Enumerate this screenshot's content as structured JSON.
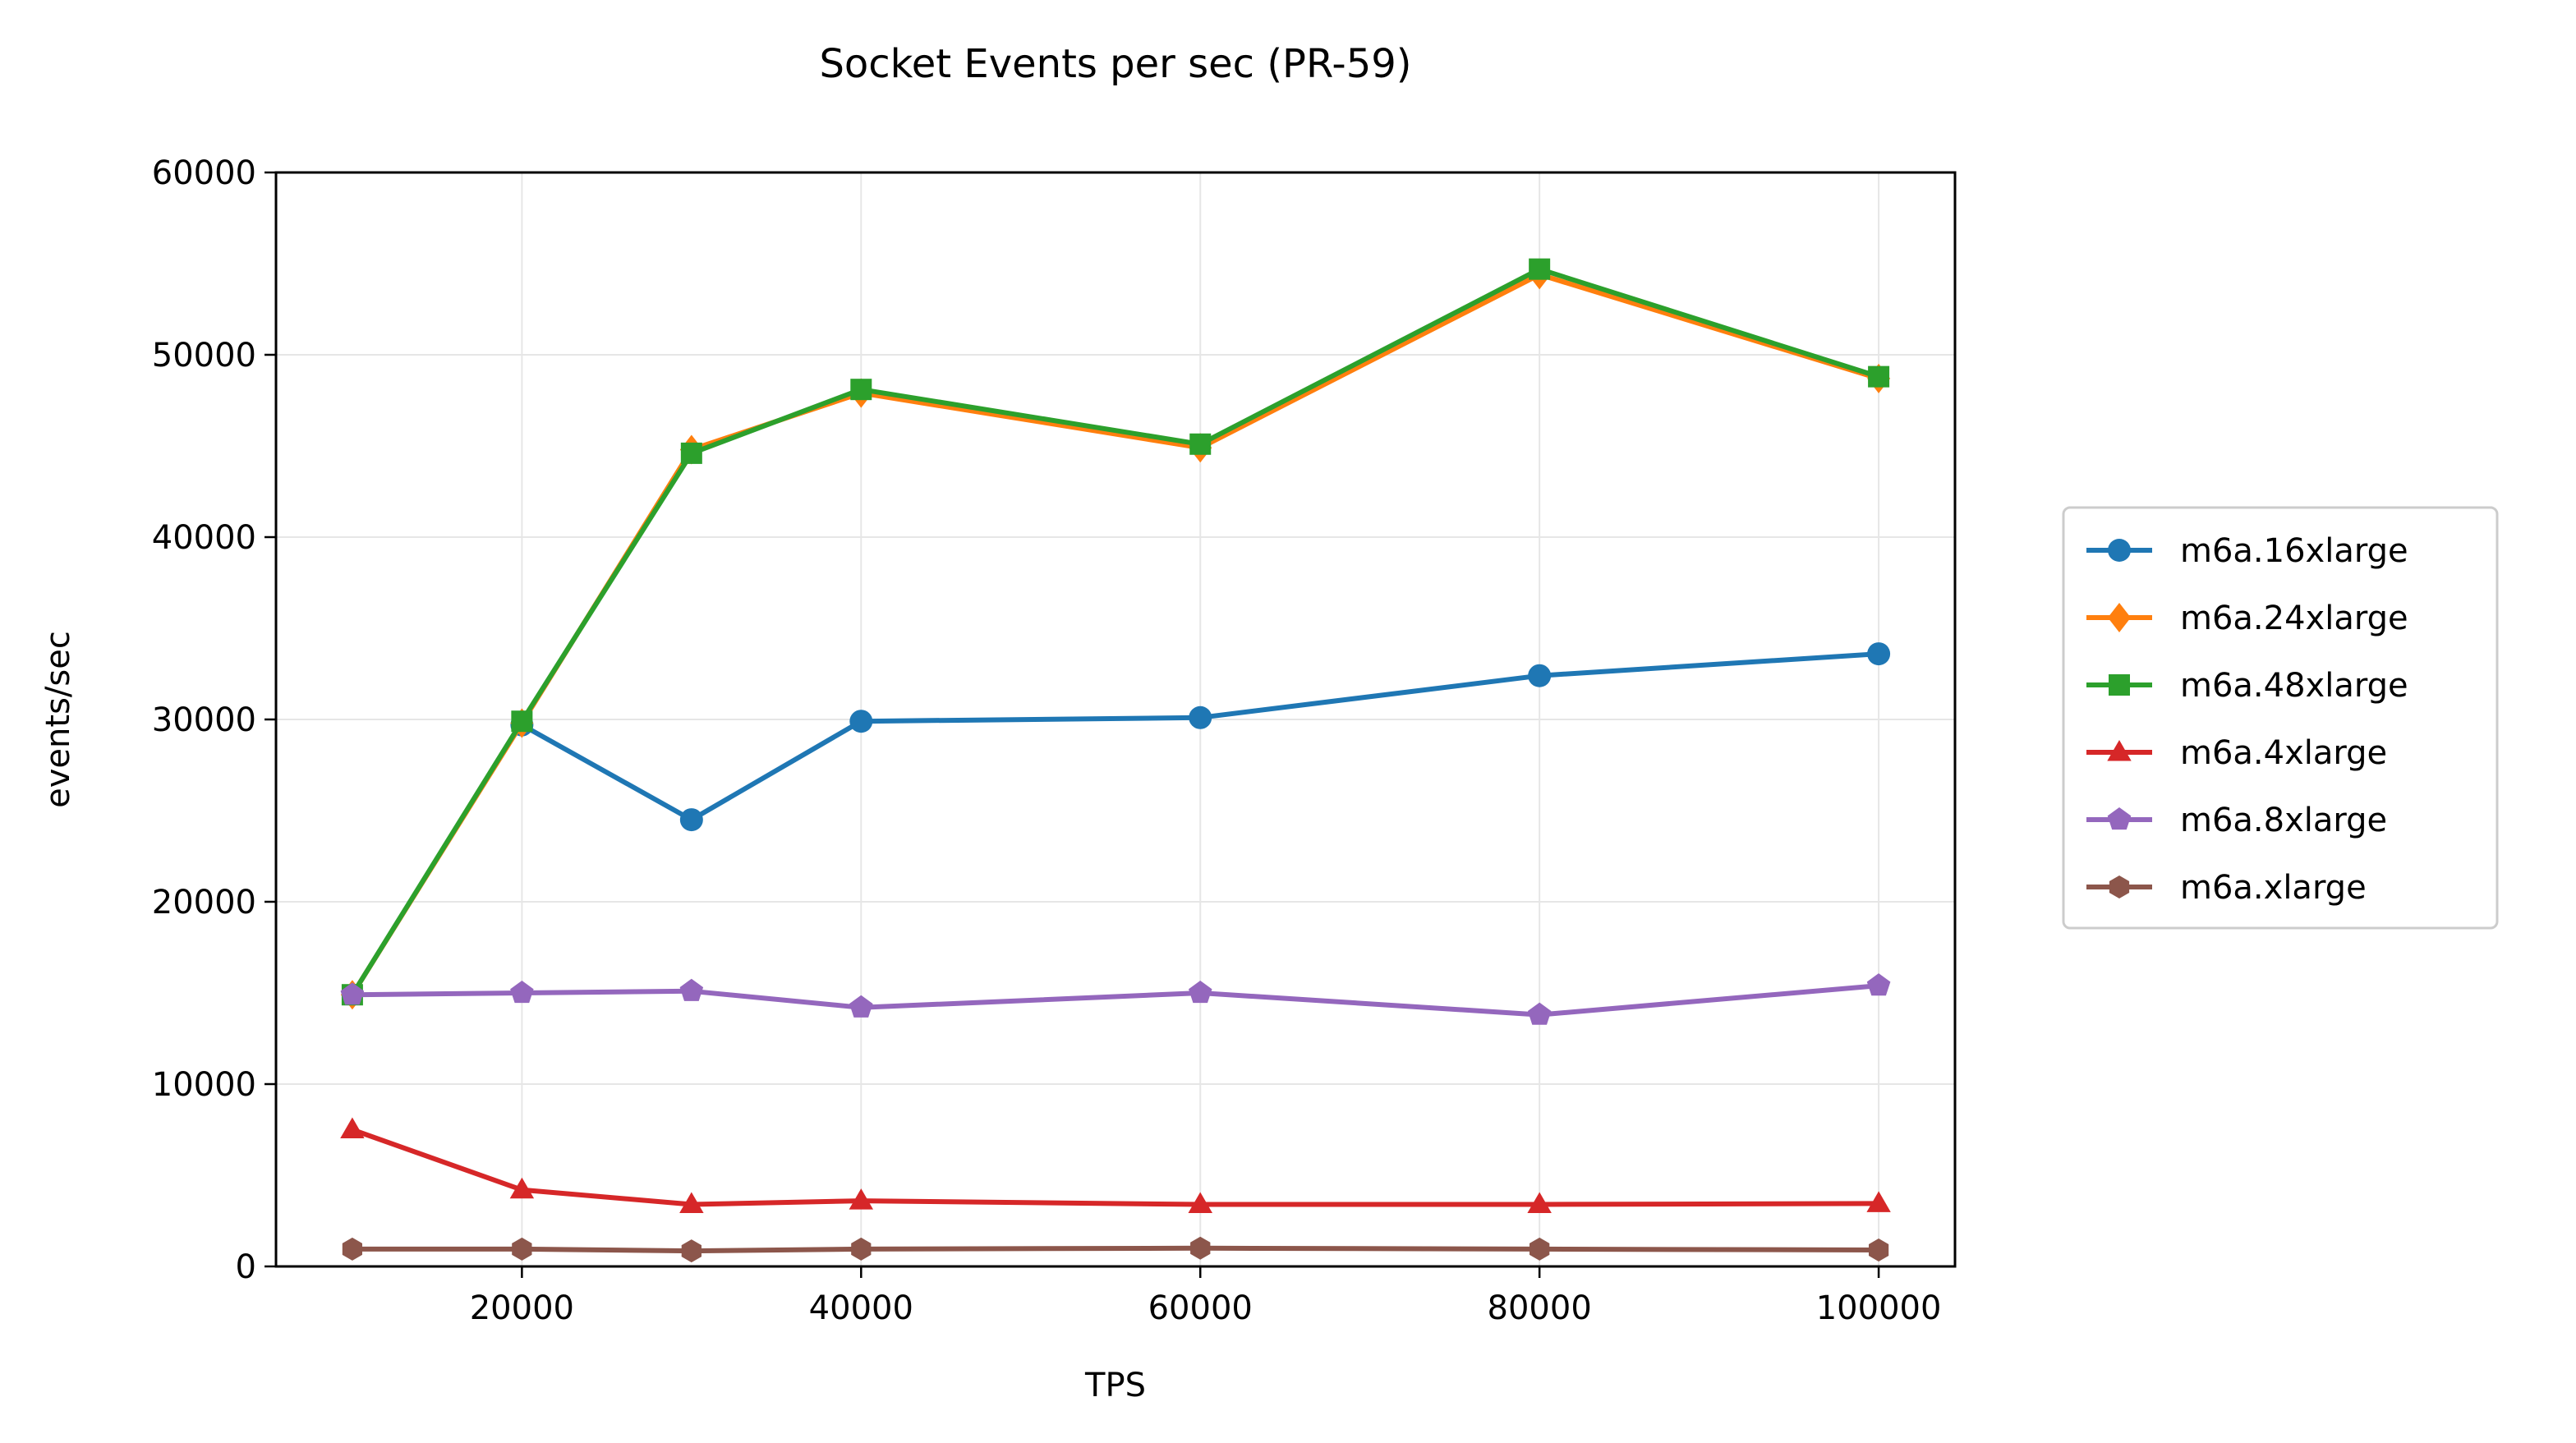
{
  "chart_data": {
    "type": "line",
    "title": "Socket Events per sec (PR-59)",
    "xlabel": "TPS",
    "ylabel": "events/sec",
    "xlim": [
      5500,
      104500
    ],
    "ylim": [
      0,
      60000
    ],
    "xticks": [
      20000,
      40000,
      60000,
      80000,
      100000
    ],
    "yticks": [
      0,
      10000,
      20000,
      30000,
      40000,
      50000,
      60000
    ],
    "grid": true,
    "legend_position": "center-right (outside plot)",
    "x": [
      10000,
      20000,
      30000,
      40000,
      60000,
      80000,
      100000
    ],
    "series": [
      {
        "name": "m6a.16xlarge",
        "color": "#1f77b4",
        "marker": "circle",
        "values": [
          null,
          29700,
          24500,
          29900,
          30100,
          32400,
          33600
        ]
      },
      {
        "name": "m6a.24xlarge",
        "color": "#ff7f0e",
        "marker": "diamond",
        "values": [
          14900,
          29800,
          44800,
          47900,
          44900,
          54400,
          48700
        ]
      },
      {
        "name": "m6a.48xlarge",
        "color": "#2ca02c",
        "marker": "square",
        "values": [
          14900,
          29900,
          44600,
          48100,
          45100,
          54700,
          48800
        ]
      },
      {
        "name": "m6a.4xlarge",
        "color": "#d62728",
        "marker": "triangle",
        "values": [
          7500,
          4200,
          3400,
          3600,
          3400,
          3400,
          3450
        ]
      },
      {
        "name": "m6a.8xlarge",
        "color": "#9467bd",
        "marker": "pentagon",
        "values": [
          14900,
          15000,
          15100,
          14200,
          15000,
          13800,
          15400
        ]
      },
      {
        "name": "m6a.xlarge",
        "color": "#8c564b",
        "marker": "hexagon",
        "values": [
          950,
          950,
          850,
          950,
          1000,
          950,
          900
        ]
      }
    ]
  }
}
